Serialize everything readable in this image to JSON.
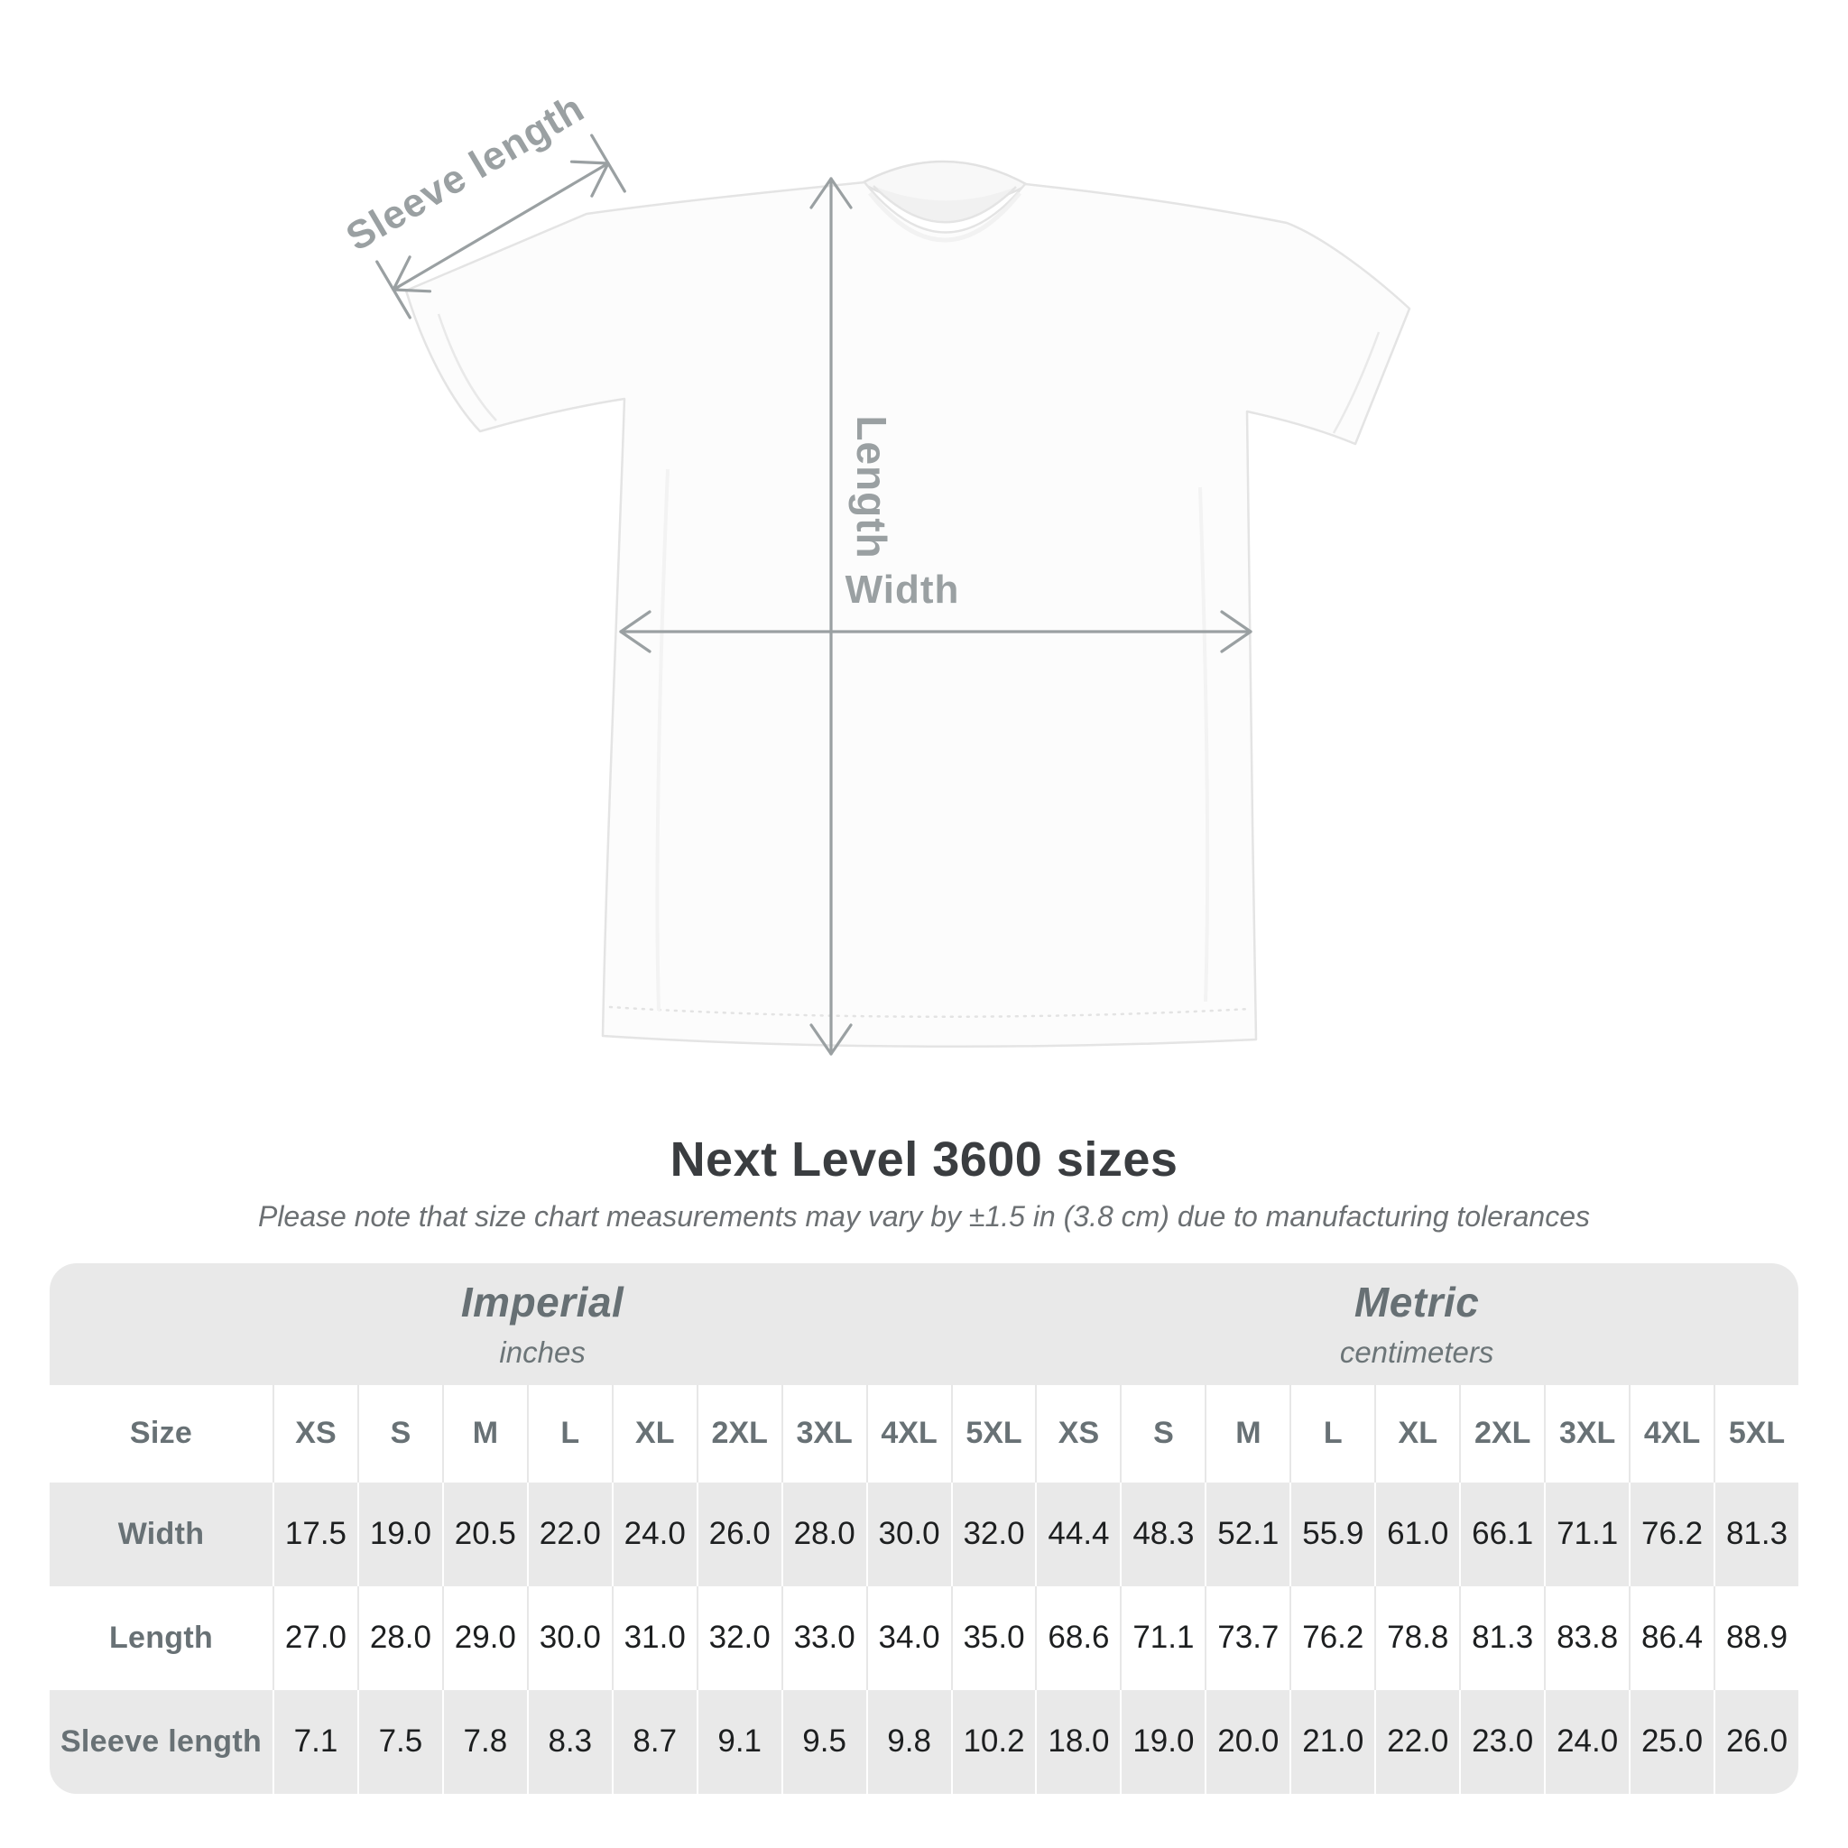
{
  "diagram": {
    "sleeve_label": "Sleeve length",
    "length_label": "Length",
    "width_label": "Width"
  },
  "title": "Next Level 3600 sizes",
  "subtitle": "Please note that size chart measurements may vary by ±1.5 in (3.8 cm) due to manufacturing tolerances",
  "table": {
    "sections": [
      {
        "label": "Imperial",
        "unit": "inches"
      },
      {
        "label": "Metric",
        "unit": "centimeters"
      }
    ],
    "size_header": "Size",
    "sizes": [
      "XS",
      "S",
      "M",
      "L",
      "XL",
      "2XL",
      "3XL",
      "4XL",
      "5XL"
    ],
    "rows": [
      {
        "label": "Width",
        "imperial": [
          "17.5",
          "19.0",
          "20.5",
          "22.0",
          "24.0",
          "26.0",
          "28.0",
          "30.0",
          "32.0"
        ],
        "metric": [
          "44.4",
          "48.3",
          "52.1",
          "55.9",
          "61.0",
          "66.1",
          "71.1",
          "76.2",
          "81.3"
        ]
      },
      {
        "label": "Length",
        "imperial": [
          "27.0",
          "28.0",
          "29.0",
          "30.0",
          "31.0",
          "32.0",
          "33.0",
          "34.0",
          "35.0"
        ],
        "metric": [
          "68.6",
          "71.1",
          "73.7",
          "76.2",
          "78.8",
          "81.3",
          "83.8",
          "86.4",
          "88.9"
        ]
      },
      {
        "label": "Sleeve length",
        "imperial": [
          "7.1",
          "7.5",
          "7.8",
          "8.3",
          "8.7",
          "9.1",
          "9.5",
          "9.8",
          "10.2"
        ],
        "metric": [
          "18.0",
          "19.0",
          "20.0",
          "21.0",
          "22.0",
          "23.0",
          "24.0",
          "25.0",
          "26.0"
        ]
      }
    ]
  },
  "colors": {
    "annotation_gray": "#9aa0a2",
    "band_gray": "#e9e9e9",
    "title_text": "#3a3d40",
    "header_text": "#687175",
    "data_text": "#1d1f20",
    "shirt_outline": "#e4e4e4"
  }
}
